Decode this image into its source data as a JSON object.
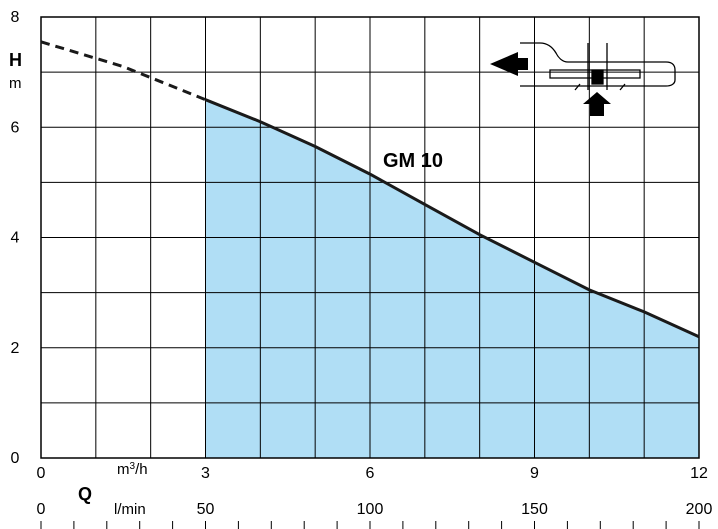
{
  "chart_data": {
    "type": "area",
    "series": [
      {
        "name": "GM 10",
        "x": [
          0,
          1.5,
          3,
          4,
          5,
          6,
          7,
          8,
          9,
          10,
          11,
          12
        ],
        "y": [
          7.55,
          7.1,
          6.5,
          6.1,
          5.65,
          5.15,
          4.6,
          4.05,
          3.55,
          3.05,
          2.65,
          2.2
        ],
        "dashed_until_x": 3,
        "shaded_from_x": 3
      }
    ],
    "xlim": [
      0,
      12
    ],
    "ylim": [
      0,
      8
    ],
    "x_ticks": [
      "0",
      "3",
      "6",
      "9",
      "12"
    ],
    "x_ticks_secondary": [
      "0",
      "50",
      "100",
      "150",
      "200"
    ],
    "y_ticks": [
      "0",
      "2",
      "4",
      "6",
      "8"
    ],
    "xlabel": "Q",
    "xunit": "m3/h",
    "xunit_secondary": "l/min",
    "ylabel": "H",
    "yunit": "m",
    "grid": true,
    "fill_color": "#b0def5",
    "curve_color": "#1a1a1a"
  }
}
